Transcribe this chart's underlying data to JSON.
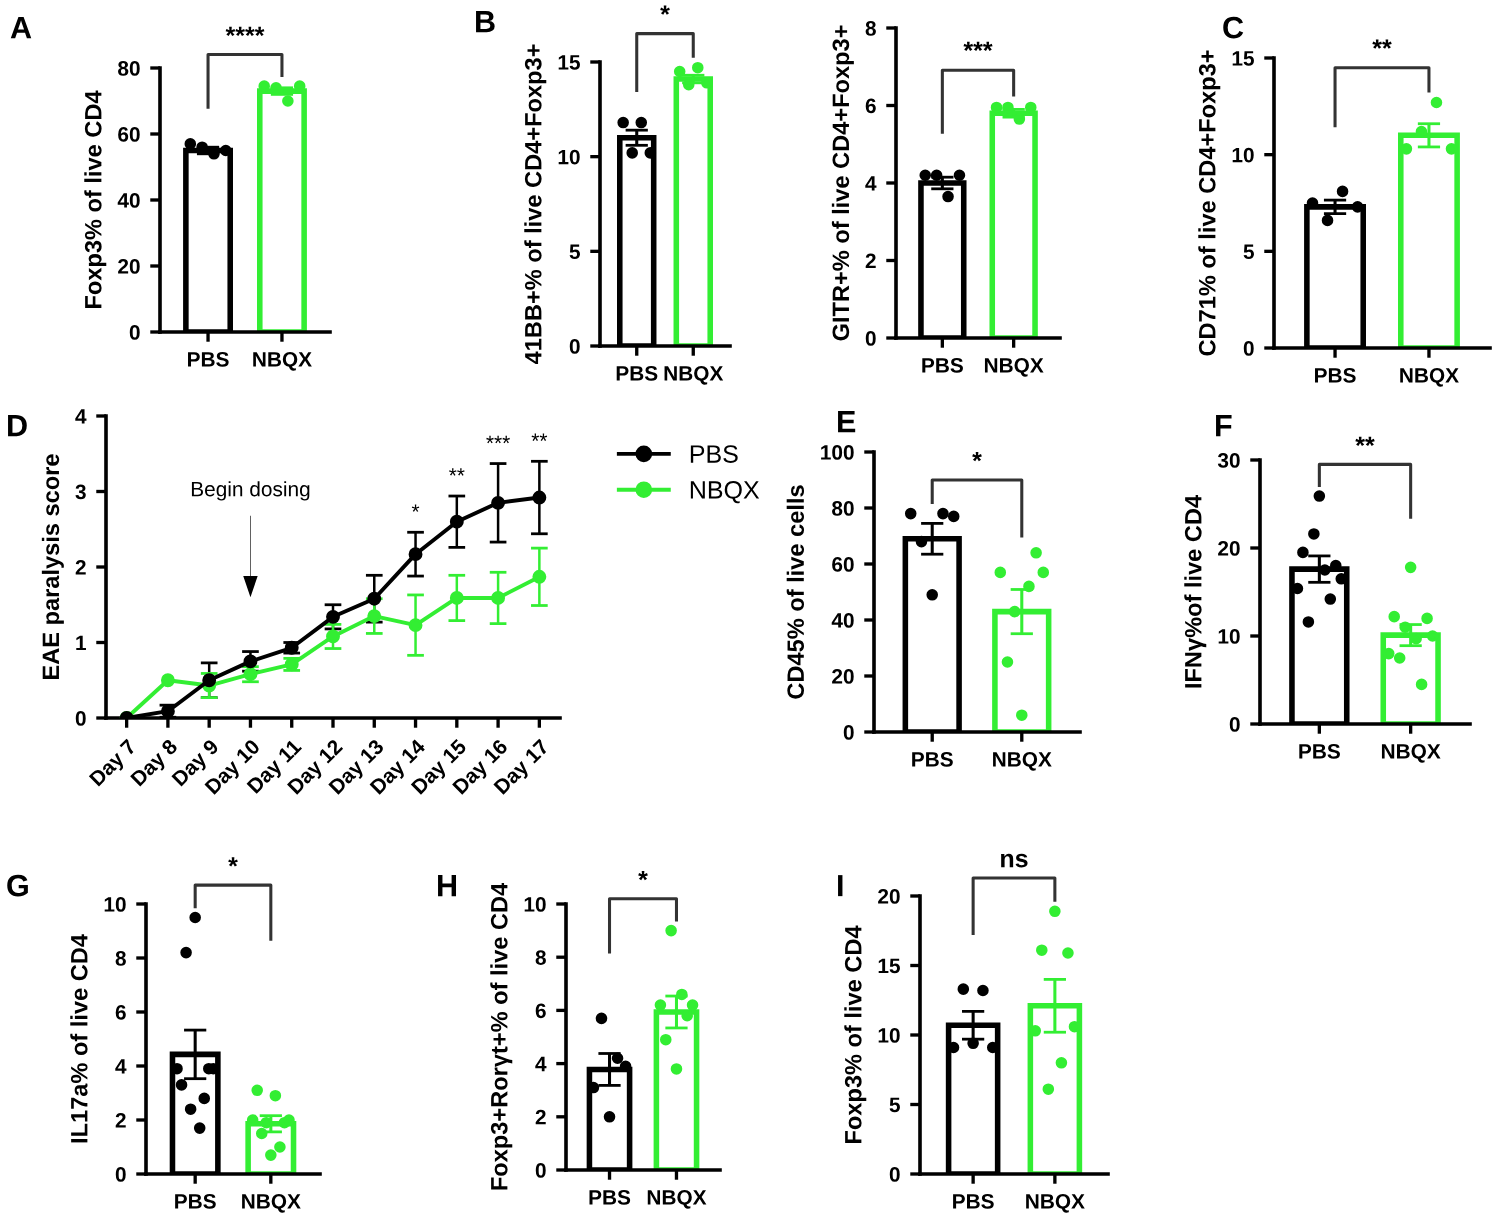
{
  "chart_data": [
    {
      "type": "bar",
      "title": "A",
      "ylabel": "Foxp3% of live CD4",
      "categories": [
        "PBS",
        "NBQX"
      ],
      "ylim": [
        0,
        80
      ],
      "yticks": [
        0,
        20,
        40,
        60,
        80
      ],
      "annotations": [
        "****"
      ],
      "series": [
        {
          "type": "bar",
          "values": [
            55,
            73
          ],
          "colors": [
            "#000000",
            "#33ee33"
          ],
          "errors": [
            1,
            1
          ]
        },
        {
          "type": "scatter",
          "x": [
            "PBS",
            "PBS",
            "PBS",
            "PBS"
          ],
          "values": [
            57,
            56,
            54,
            55
          ],
          "color": "#000000"
        },
        {
          "type": "scatter",
          "x": [
            "NBQX",
            "NBQX",
            "NBQX",
            "NBQX"
          ],
          "values": [
            74.5,
            74,
            70,
            74.5
          ],
          "color": "#33ee33"
        }
      ]
    },
    {
      "type": "bar",
      "title": "B",
      "ylabel": "41BB+% of live CD4+Foxp3+",
      "categories": [
        "PBS",
        "NBQX"
      ],
      "ylim": [
        0,
        15
      ],
      "yticks": [
        0,
        5,
        10,
        15
      ],
      "annotations": [
        "*"
      ],
      "series": [
        {
          "type": "bar",
          "values": [
            11,
            14.1
          ],
          "colors": [
            "#000000",
            "#33ee33"
          ],
          "errors": [
            0.4,
            0.2
          ]
        },
        {
          "type": "scatter",
          "x": [
            "PBS",
            "PBS",
            "PBS",
            "PBS"
          ],
          "values": [
            11.8,
            10.2,
            11.8,
            10.2
          ],
          "color": "#000000"
        },
        {
          "type": "scatter",
          "x": [
            "NBQX",
            "NBQX",
            "NBQX",
            "NBQX"
          ],
          "values": [
            14.5,
            13.8,
            14.7,
            13.9
          ],
          "color": "#33ee33"
        }
      ]
    },
    {
      "type": "bar",
      "ylabel": "GITR+% of live CD4+Foxp3+",
      "categories": [
        "PBS",
        "NBQX"
      ],
      "ylim": [
        0,
        8
      ],
      "yticks": [
        0,
        2,
        4,
        6,
        8
      ],
      "annotations": [
        "***"
      ],
      "series": [
        {
          "type": "bar",
          "values": [
            4.0,
            5.8
          ],
          "colors": [
            "#000000",
            "#33ee33"
          ],
          "errors": [
            0.15,
            0.1
          ]
        },
        {
          "type": "scatter",
          "x": [
            "PBS",
            "PBS",
            "PBS",
            "PBS"
          ],
          "values": [
            4.2,
            4.2,
            3.65,
            4.2
          ],
          "color": "#000000"
        },
        {
          "type": "scatter",
          "x": [
            "NBQX",
            "NBQX",
            "NBQX",
            "NBQX"
          ],
          "values": [
            5.95,
            5.95,
            5.65,
            5.95
          ],
          "color": "#33ee33"
        }
      ]
    },
    {
      "type": "bar",
      "title": "C",
      "ylabel": "CD71% of live CD4+Foxp3+",
      "categories": [
        "PBS",
        "NBQX"
      ],
      "ylim": [
        0,
        15
      ],
      "yticks": [
        0,
        5,
        10,
        15
      ],
      "annotations": [
        "**"
      ],
      "series": [
        {
          "type": "bar",
          "values": [
            7.3,
            11
          ],
          "colors": [
            "#000000",
            "#33ee33"
          ],
          "errors": [
            0.35,
            0.6
          ]
        },
        {
          "type": "scatter",
          "x": [
            "PBS",
            "PBS",
            "PBS",
            "PBS"
          ],
          "values": [
            7.5,
            6.6,
            8.1,
            7.3
          ],
          "color": "#000000"
        },
        {
          "type": "scatter",
          "x": [
            "NBQX",
            "NBQX",
            "NBQX",
            "NBQX"
          ],
          "values": [
            10.3,
            11.2,
            12.7,
            10.3
          ],
          "color": "#33ee33"
        }
      ]
    },
    {
      "type": "line",
      "title": "D",
      "ylabel": "EAE paralysis score",
      "categories": [
        "Day 7",
        "Day 8",
        "Day 9",
        "Day 10",
        "Day 11",
        "Day 12",
        "Day 13",
        "Day 14",
        "Day 15",
        "Day 16",
        "Day 17"
      ],
      "ylim": [
        0,
        4
      ],
      "yticks": [
        0,
        1,
        2,
        3,
        4
      ],
      "legend": "right",
      "marker": "circle",
      "annotations": [
        "Begin dosing",
        "*",
        "**",
        "***",
        "**"
      ],
      "series": [
        {
          "name": "PBS",
          "color": "#000000",
          "values": [
            0,
            0.09,
            0.5,
            0.75,
            0.93,
            1.34,
            1.58,
            2.17,
            2.6,
            2.85,
            2.92
          ],
          "errors": [
            null,
            0.08,
            0.23,
            0.13,
            0.07,
            0.16,
            0.31,
            0.29,
            0.34,
            0.52,
            0.48
          ]
        },
        {
          "name": "NBQX",
          "color": "#33ee33",
          "values": [
            0,
            0.5,
            0.43,
            0.58,
            0.71,
            1.08,
            1.35,
            1.23,
            1.59,
            1.59,
            1.87
          ],
          "errors": [
            null,
            null,
            0.16,
            0.1,
            0.08,
            0.16,
            0.23,
            0.4,
            0.3,
            0.34,
            0.38
          ]
        }
      ]
    },
    {
      "type": "bar",
      "title": "E",
      "ylabel": "CD45% of live cells",
      "categories": [
        "PBS",
        "NBQX"
      ],
      "ylim": [
        0,
        100
      ],
      "yticks": [
        0,
        20,
        40,
        60,
        80,
        100
      ],
      "annotations": [
        "*"
      ],
      "series": [
        {
          "type": "bar",
          "values": [
            69,
            43
          ],
          "colors": [
            "#000000",
            "#33ee33"
          ],
          "errors": [
            5.5,
            7.9
          ]
        },
        {
          "type": "scatter",
          "x": [
            "PBS",
            "PBS",
            "PBS",
            "PBS",
            "PBS"
          ],
          "values": [
            78,
            68,
            49,
            78,
            77
          ],
          "color": "#000000"
        },
        {
          "type": "scatter",
          "x": [
            "NBQX",
            "NBQX",
            "NBQX",
            "NBQX",
            "NBQX",
            "NBQX",
            "NBQX"
          ],
          "values": [
            57,
            25,
            43,
            6,
            52,
            64,
            57
          ],
          "color": "#33ee33"
        }
      ]
    },
    {
      "type": "bar",
      "title": "F",
      "ylabel": "IFNγ%of live CD4",
      "categories": [
        "PBS",
        "NBQX"
      ],
      "ylim": [
        0,
        30
      ],
      "yticks": [
        0,
        10,
        20,
        30
      ],
      "annotations": [
        "**"
      ],
      "series": [
        {
          "type": "bar",
          "values": [
            17.6,
            10.1
          ],
          "colors": [
            "#000000",
            "#33ee33"
          ],
          "errors": [
            1.5,
            1.2
          ]
        },
        {
          "type": "scatter",
          "x": [
            "PBS",
            "PBS",
            "PBS",
            "PBS",
            "PBS",
            "PBS",
            "PBS",
            "PBS",
            "PBS"
          ],
          "values": [
            15.4,
            19.5,
            11.6,
            21.6,
            25.9,
            17.5,
            14.2,
            18,
            16.5
          ],
          "color": "#000000"
        },
        {
          "type": "scatter",
          "x": [
            "NBQX",
            "NBQX",
            "NBQX",
            "NBQX",
            "NBQX",
            "NBQX",
            "NBQX",
            "NBQX",
            "NBQX"
          ],
          "values": [
            8,
            12.2,
            7.5,
            11,
            17.8,
            9.7,
            4.5,
            12,
            10
          ],
          "color": "#33ee33"
        }
      ]
    },
    {
      "type": "bar",
      "title": "G",
      "ylabel": "IL17a% of live CD4",
      "categories": [
        "PBS",
        "NBQX"
      ],
      "ylim": [
        0,
        10
      ],
      "yticks": [
        0,
        2,
        4,
        6,
        8,
        10
      ],
      "annotations": [
        "*"
      ],
      "series": [
        {
          "type": "bar",
          "values": [
            4.43,
            1.86
          ],
          "colors": [
            "#000000",
            "#33ee33"
          ],
          "errors": [
            0.9,
            0.3
          ]
        },
        {
          "type": "scatter",
          "x": [
            "PBS",
            "PBS",
            "PBS",
            "PBS",
            "PBS",
            "PBS",
            "PBS",
            "PBS",
            "PBS"
          ],
          "values": [
            3.9,
            3.3,
            8.2,
            2.4,
            9.5,
            1.7,
            2.8,
            3.9,
            3.9
          ],
          "color": "#000000"
        },
        {
          "type": "scatter",
          "x": [
            "NBQX",
            "NBQX",
            "NBQX",
            "NBQX",
            "NBQX",
            "NBQX",
            "NBQX",
            "NBQX",
            "NBQX"
          ],
          "values": [
            2.0,
            3.1,
            1.5,
            1.9,
            0.7,
            2.9,
            1.0,
            1.9,
            2.0
          ],
          "color": "#33ee33"
        }
      ]
    },
    {
      "type": "bar",
      "title": "H",
      "ylabel": "Foxp3+Rorγt+% of live CD4",
      "categories": [
        "PBS",
        "NBQX"
      ],
      "ylim": [
        0,
        10
      ],
      "yticks": [
        0,
        2,
        4,
        6,
        8,
        10
      ],
      "annotations": [
        "*"
      ],
      "series": [
        {
          "type": "bar",
          "values": [
            3.78,
            5.94
          ],
          "colors": [
            "#000000",
            "#33ee33"
          ],
          "errors": [
            0.6,
            0.6
          ]
        },
        {
          "type": "scatter",
          "x": [
            "PBS",
            "PBS",
            "PBS",
            "PBS",
            "PBS"
          ],
          "values": [
            3.1,
            5.7,
            2.0,
            4.2,
            3.9
          ],
          "color": "#000000"
        },
        {
          "type": "scatter",
          "x": [
            "NBQX",
            "NBQX",
            "NBQX",
            "NBQX",
            "NBQX",
            "NBQX",
            "NBQX"
          ],
          "values": [
            6.2,
            4.9,
            9.0,
            3.8,
            6.6,
            5.8,
            6.2
          ],
          "color": "#33ee33"
        }
      ]
    },
    {
      "type": "bar",
      "title": "I",
      "ylabel": "Foxp3% of live CD4",
      "categories": [
        "PBS",
        "NBQX"
      ],
      "ylim": [
        0,
        20
      ],
      "yticks": [
        0,
        5,
        10,
        15,
        20
      ],
      "annotations": [
        "ns"
      ],
      "series": [
        {
          "type": "bar",
          "values": [
            10.7,
            12.1
          ],
          "colors": [
            "#000000",
            "#33ee33"
          ],
          "errors": [
            1.0,
            1.9
          ]
        },
        {
          "type": "scatter",
          "x": [
            "PBS",
            "PBS",
            "PBS",
            "PBS",
            "PBS"
          ],
          "values": [
            9.1,
            13.3,
            9.4,
            13.2,
            9.1
          ],
          "color": "#000000"
        },
        {
          "type": "scatter",
          "x": [
            "NBQX",
            "NBQX",
            "NBQX",
            "NBQX",
            "NBQX",
            "NBQX",
            "NBQX"
          ],
          "values": [
            10.3,
            16.1,
            6.1,
            18.9,
            8.0,
            15.9,
            10.6
          ],
          "color": "#33ee33"
        }
      ]
    }
  ]
}
